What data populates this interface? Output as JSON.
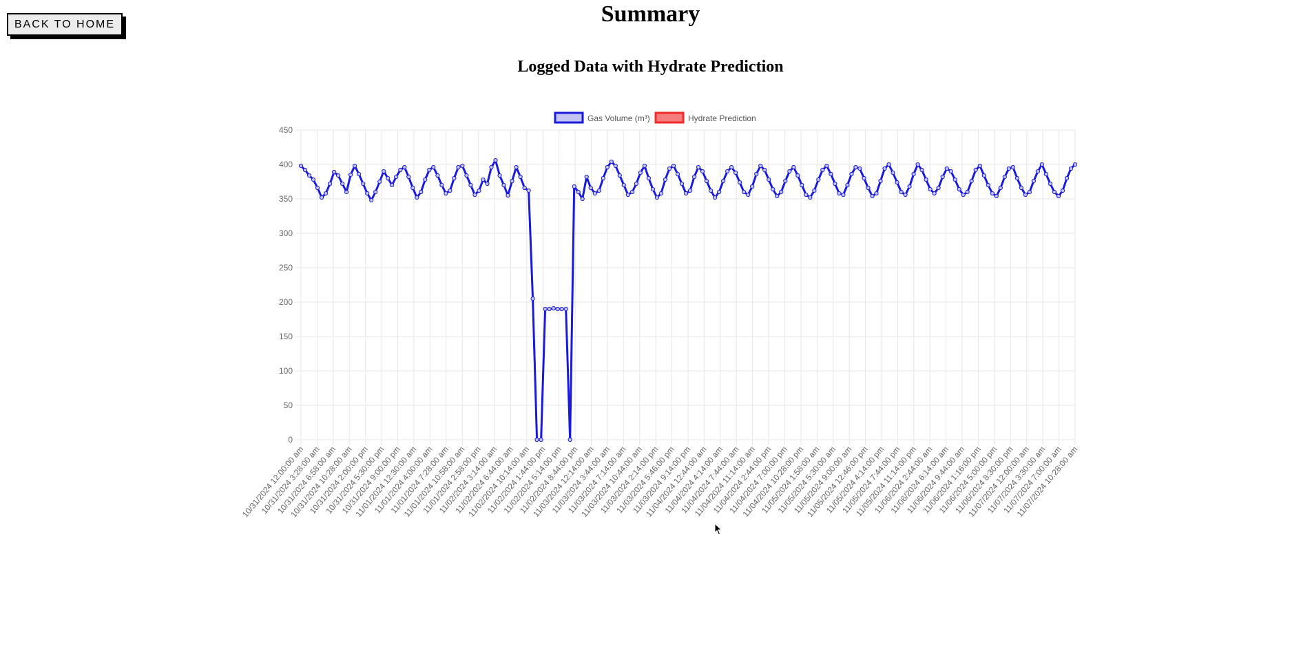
{
  "page": {
    "title": "Summary",
    "back_label": "BACK TO HOME"
  },
  "chart_heading": "Logged Data with Hydrate Prediction",
  "colors": {
    "gas": "#1a1adc",
    "gas_fill": "#c4c4f2",
    "hydrate": "#ef2b2b",
    "hydrate_fill": "#f47c7c",
    "grid": "#e6e6e6",
    "tick": "#666666"
  },
  "chart_data": {
    "type": "line",
    "title": "Logged Data with Hydrate Prediction",
    "xlabel": "",
    "ylabel": "",
    "ylim": [
      0,
      450
    ],
    "yticks": [
      0,
      50,
      100,
      150,
      200,
      250,
      300,
      350,
      400,
      450
    ],
    "grid": true,
    "legend_position": "top",
    "legend": [
      "Gas Volume (m³)",
      "Hydrate Prediction"
    ],
    "x_tick_labels": [
      "10/31/2024 12:00:00 am",
      "10/31/2024 3:28:00 am",
      "10/31/2024 6:58:00 am",
      "10/31/2024 10:28:00 am",
      "10/31/2024 2:00:00 pm",
      "10/31/2024 5:30:00 pm",
      "10/31/2024 9:00:00 pm",
      "11/01/2024 12:30:00 am",
      "11/01/2024 4:00:00 am",
      "11/01/2024 7:28:00 am",
      "11/01/2024 10:58:00 am",
      "11/01/2024 2:58:00 pm",
      "11/02/2024 3:14:00 am",
      "11/02/2024 6:44:00 am",
      "11/02/2024 10:14:00 am",
      "11/02/2024 1:44:00 pm",
      "11/02/2024 5:14:00 pm",
      "11/02/2024 8:44:00 pm",
      "11/03/2024 12:14:00 am",
      "11/03/2024 3:44:00 am",
      "11/03/2024 7:14:00 am",
      "11/03/2024 10:44:00 am",
      "11/03/2024 2:14:00 pm",
      "11/03/2024 5:46:00 pm",
      "11/03/2024 9:14:00 pm",
      "11/04/2024 12:44:00 am",
      "11/04/2024 4:14:00 am",
      "11/04/2024 7:44:00 am",
      "11/04/2024 11:14:00 am",
      "11/04/2024 2:44:00 pm",
      "11/04/2024 7:00:00 pm",
      "11/04/2024 10:28:00 pm",
      "11/05/2024 1:58:00 am",
      "11/05/2024 5:30:00 am",
      "11/05/2024 9:00:00 am",
      "11/05/2024 12:46:00 pm",
      "11/05/2024 4:14:00 pm",
      "11/05/2024 7:44:00 pm",
      "11/05/2024 11:14:00 pm",
      "11/06/2024 2:44:00 am",
      "11/06/2024 6:14:00 am",
      "11/06/2024 9:44:00 am",
      "11/06/2024 1:16:00 pm",
      "11/06/2024 5:00:00 pm",
      "11/06/2024 8:30:00 pm",
      "11/07/2024 12:00:00 am",
      "11/07/2024 3:30:00 am",
      "11/07/2024 7:00:00 am",
      "11/07/2024 10:28:00 am"
    ],
    "series": [
      {
        "name": "Gas Volume (m³)",
        "values": [
          398,
          392,
          384,
          378,
          366,
          352,
          358,
          372,
          389,
          384,
          372,
          360,
          385,
          398,
          386,
          372,
          358,
          348,
          360,
          375,
          390,
          380,
          370,
          382,
          392,
          396,
          382,
          366,
          352,
          360,
          378,
          392,
          396,
          384,
          370,
          358,
          362,
          380,
          396,
          398,
          384,
          370,
          356,
          362,
          378,
          372,
          396,
          406,
          384,
          370,
          355,
          376,
          396,
          382,
          366,
          362,
          205,
          0,
          0,
          190,
          190,
          191,
          190,
          190,
          190,
          0,
          368,
          360,
          350,
          382,
          366,
          358,
          362,
          380,
          396,
          404,
          398,
          384,
          370,
          356,
          360,
          372,
          388,
          398,
          380,
          364,
          352,
          358,
          378,
          394,
          398,
          386,
          372,
          358,
          362,
          382,
          396,
          390,
          376,
          362,
          352,
          360,
          376,
          390,
          396,
          388,
          374,
          360,
          356,
          368,
          386,
          398,
          392,
          378,
          364,
          354,
          360,
          376,
          390,
          396,
          384,
          370,
          356,
          352,
          362,
          378,
          392,
          398,
          386,
          372,
          358,
          356,
          370,
          386,
          396,
          394,
          380,
          366,
          354,
          358,
          376,
          394,
          400,
          388,
          374,
          360,
          356,
          368,
          386,
          400,
          392,
          378,
          364,
          358,
          366,
          382,
          394,
          390,
          378,
          364,
          356,
          360,
          376,
          392,
          398,
          384,
          370,
          358,
          354,
          366,
          382,
          394,
          396,
          380,
          366,
          356,
          360,
          376,
          390,
          400,
          386,
          372,
          360,
          354,
          362,
          380,
          394,
          400
        ]
      },
      {
        "name": "Hydrate Prediction",
        "values": []
      }
    ]
  }
}
